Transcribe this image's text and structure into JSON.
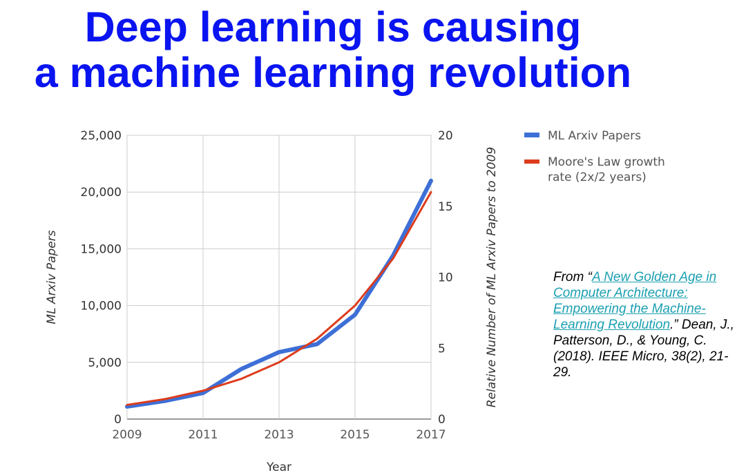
{
  "title": {
    "line1": "Deep learning is causing",
    "line2": "a machine learning revolution"
  },
  "chart_data": {
    "type": "line",
    "x": [
      2009,
      2010,
      2011,
      2012,
      2013,
      2014,
      2015,
      2016,
      2017
    ],
    "x_tick_labels": [
      "2009",
      "2011",
      "2013",
      "2015",
      "2017"
    ],
    "xlabel": "Year",
    "ylabel": "ML Arxiv Papers",
    "ylim": [
      0,
      25000
    ],
    "y_ticks": [
      0,
      5000,
      10000,
      15000,
      20000,
      25000
    ],
    "y_tick_labels": [
      "0",
      "5,000",
      "10,000",
      "15,000",
      "20,000",
      "25,000"
    ],
    "y2label": "Relative Number of ML Arxiv Papers  to 2009",
    "y2lim": [
      0,
      20
    ],
    "y2_ticks": [
      0,
      5,
      10,
      15,
      20
    ],
    "y2_tick_labels": [
      "0",
      "5",
      "10",
      "15",
      "20"
    ],
    "grid": true,
    "legend_position": "top-right",
    "series": [
      {
        "name": "ML Arxiv Papers",
        "axis": "left",
        "color": "#3d6fd6",
        "values": [
          1100,
          1600,
          2300,
          4400,
          5900,
          6600,
          9200,
          14400,
          21000
        ]
      },
      {
        "name": "Moore's Law growth rate (2x/2 years)",
        "axis": "right",
        "color": "#dd3c1c",
        "values": [
          1,
          1.41,
          2,
          2.83,
          4,
          5.66,
          8,
          11.31,
          16
        ]
      }
    ]
  },
  "legend": {
    "item1": "ML Arxiv Papers",
    "item2_line1": "Moore's Law growth",
    "item2_line2": "rate (2x/2 years)"
  },
  "citation": {
    "prefix": "From “",
    "link_text": "A New Golden Age in Computer Architecture: Empowering the Machine-Learning Revolution",
    "suffix": ".” Dean, J., Patterson, D., & Young, C. (2018).  IEEE Micro, 38(2), 21-29."
  }
}
